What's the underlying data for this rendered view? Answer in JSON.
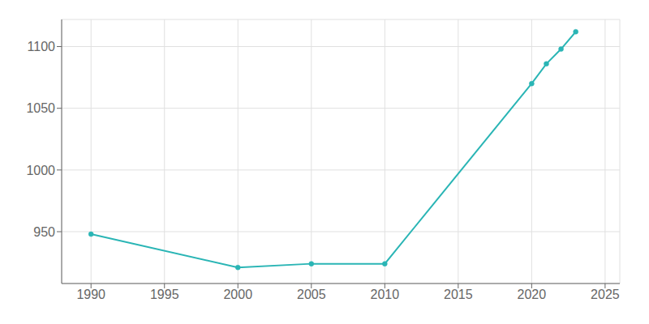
{
  "chart_data": {
    "type": "line",
    "x": [
      1990,
      2000,
      2005,
      2010,
      2020,
      2021,
      2022,
      2023
    ],
    "values": [
      948,
      921,
      924,
      924,
      1070,
      1086,
      1098,
      1112
    ],
    "color": "#2ab5b5",
    "marker": "circle",
    "xlim": [
      1988,
      2026
    ],
    "ylim": [
      908,
      1122
    ],
    "xticks": [
      1990,
      1995,
      2000,
      2005,
      2010,
      2015,
      2020,
      2025
    ],
    "yticks": [
      950,
      1000,
      1050,
      1100
    ],
    "grid": true
  }
}
